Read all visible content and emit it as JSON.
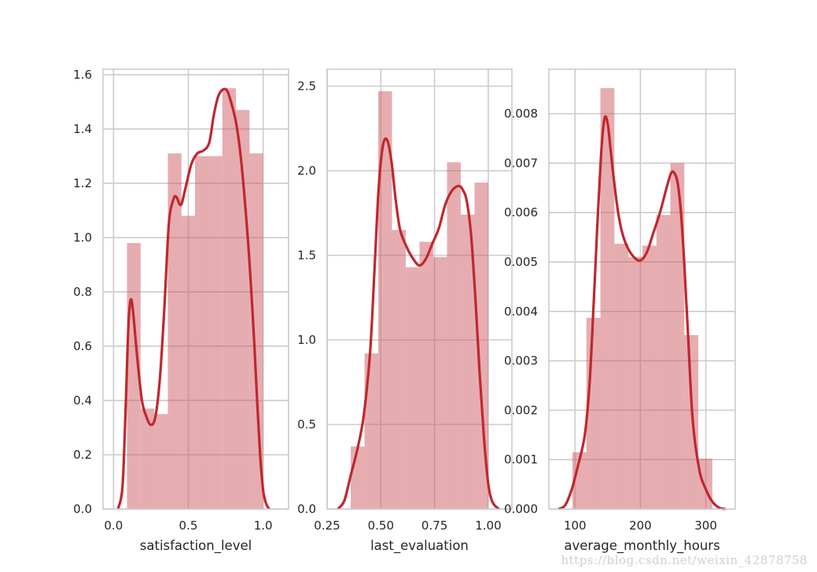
{
  "figure": {
    "watermark": "https://blog.csdn.net/weixin_42878758",
    "colors": {
      "bar": "#cd5c64",
      "kde": "#c0272d",
      "grid": "#cccccc",
      "spine": "#cccccc",
      "text": "#262626"
    }
  },
  "chart_data": [
    {
      "type": "bar",
      "subtype": "histogram_with_kde",
      "xlabel": "satisfaction_level",
      "ylabel": "",
      "xlim": [
        -0.07,
        1.17
      ],
      "ylim": [
        0,
        1.62
      ],
      "xticks": [
        0.0,
        0.5,
        1.0
      ],
      "xtick_labels": [
        "0.0",
        "0.5",
        "1.0"
      ],
      "yticks": [
        0.0,
        0.2,
        0.4,
        0.6,
        0.8,
        1.0,
        1.2,
        1.4,
        1.6
      ],
      "ytick_labels": [
        "0.0",
        "0.2",
        "0.4",
        "0.6",
        "0.8",
        "1.0",
        "1.2",
        "1.4",
        "1.6"
      ],
      "grid": true,
      "bin_edges": [
        0.09,
        0.181,
        0.272,
        0.363,
        0.454,
        0.545,
        0.636,
        0.727,
        0.818,
        0.909,
        1.0
      ],
      "values": [
        0.98,
        0.37,
        0.35,
        1.31,
        1.08,
        1.3,
        1.3,
        1.55,
        1.47,
        1.31
      ],
      "kde": {
        "x": [
          0.03,
          0.06,
          0.08,
          0.1,
          0.115,
          0.13,
          0.16,
          0.19,
          0.22,
          0.25,
          0.28,
          0.31,
          0.34,
          0.37,
          0.4,
          0.42,
          0.45,
          0.48,
          0.52,
          0.56,
          0.6,
          0.64,
          0.67,
          0.7,
          0.73,
          0.76,
          0.79,
          0.82,
          0.85,
          0.88,
          0.91,
          0.94,
          0.96,
          0.98,
          1.0,
          1.02,
          1.04
        ],
        "y": [
          0.0,
          0.08,
          0.35,
          0.68,
          0.77,
          0.73,
          0.55,
          0.4,
          0.34,
          0.31,
          0.34,
          0.48,
          0.74,
          1.05,
          1.14,
          1.15,
          1.12,
          1.18,
          1.27,
          1.31,
          1.32,
          1.35,
          1.45,
          1.52,
          1.545,
          1.54,
          1.49,
          1.42,
          1.3,
          1.12,
          0.9,
          0.62,
          0.4,
          0.2,
          0.07,
          0.02,
          0.0
        ]
      }
    },
    {
      "type": "bar",
      "subtype": "histogram_with_kde",
      "xlabel": "last_evaluation",
      "ylabel": "",
      "xlim": [
        0.25,
        1.11
      ],
      "ylim": [
        0,
        2.6
      ],
      "xticks": [
        0.25,
        0.5,
        0.75,
        1.0
      ],
      "xtick_labels": [
        "0.25",
        "0.50",
        "0.75",
        "1.00"
      ],
      "yticks": [
        0.0,
        0.5,
        1.0,
        1.5,
        2.0,
        2.5
      ],
      "ytick_labels": [
        "0.0",
        "0.5",
        "1.0",
        "1.5",
        "2.0",
        "2.5"
      ],
      "grid": true,
      "bin_edges": [
        0.36,
        0.424,
        0.488,
        0.552,
        0.616,
        0.68,
        0.744,
        0.808,
        0.872,
        0.936,
        1.0
      ],
      "values": [
        0.37,
        0.92,
        2.47,
        1.65,
        1.43,
        1.58,
        1.49,
        2.05,
        1.74,
        1.93
      ],
      "kde": {
        "x": [
          0.3,
          0.33,
          0.36,
          0.39,
          0.42,
          0.45,
          0.47,
          0.49,
          0.51,
          0.53,
          0.55,
          0.57,
          0.59,
          0.62,
          0.65,
          0.68,
          0.71,
          0.74,
          0.77,
          0.8,
          0.83,
          0.86,
          0.88,
          0.9,
          0.92,
          0.94,
          0.96,
          0.98,
          1.0,
          1.02,
          1.05
        ],
        "y": [
          0.0,
          0.05,
          0.2,
          0.35,
          0.55,
          0.93,
          1.4,
          1.9,
          2.15,
          2.18,
          2.05,
          1.82,
          1.65,
          1.55,
          1.48,
          1.44,
          1.48,
          1.57,
          1.66,
          1.8,
          1.88,
          1.91,
          1.89,
          1.82,
          1.62,
          1.25,
          0.8,
          0.42,
          0.15,
          0.04,
          0.0
        ]
      }
    },
    {
      "type": "bar",
      "subtype": "histogram_with_kde",
      "xlabel": "average_monthly_hours",
      "ylabel": "",
      "xlim": [
        60,
        345
      ],
      "ylim": [
        0,
        0.0089
      ],
      "xticks": [
        100,
        200,
        300
      ],
      "xtick_labels": [
        "100",
        "200",
        "300"
      ],
      "yticks": [
        0.0,
        0.001,
        0.002,
        0.003,
        0.004,
        0.005,
        0.006,
        0.007,
        0.008
      ],
      "ytick_labels": [
        "0.000",
        "0.001",
        "0.002",
        "0.003",
        "0.004",
        "0.005",
        "0.006",
        "0.007",
        "0.008"
      ],
      "grid": true,
      "bin_edges": [
        96,
        117.4,
        138.8,
        160.2,
        181.6,
        203,
        224.4,
        245.8,
        267.2,
        288.6,
        310
      ],
      "values": [
        0.00115,
        0.00387,
        0.00852,
        0.00537,
        0.0051,
        0.00533,
        0.00595,
        0.007,
        0.00352,
        0.00102
      ],
      "kde": {
        "x": [
          75,
          85,
          95,
          105,
          115,
          122,
          128,
          134,
          140,
          145,
          150,
          155,
          160,
          166,
          172,
          180,
          190,
          200,
          210,
          220,
          230,
          240,
          247,
          252,
          257,
          262,
          267,
          273,
          280,
          290,
          300,
          310,
          320,
          330
        ],
        "y": [
          0.0,
          8e-05,
          0.0004,
          0.0009,
          0.0015,
          0.0025,
          0.004,
          0.0057,
          0.0072,
          0.0079,
          0.0078,
          0.0072,
          0.0066,
          0.006,
          0.0056,
          0.0053,
          0.0051,
          0.00503,
          0.0052,
          0.0056,
          0.006,
          0.0065,
          0.0068,
          0.0068,
          0.0066,
          0.006,
          0.005,
          0.0035,
          0.0018,
          0.0008,
          0.0004,
          0.00015,
          3e-05,
          0.0
        ]
      }
    }
  ]
}
